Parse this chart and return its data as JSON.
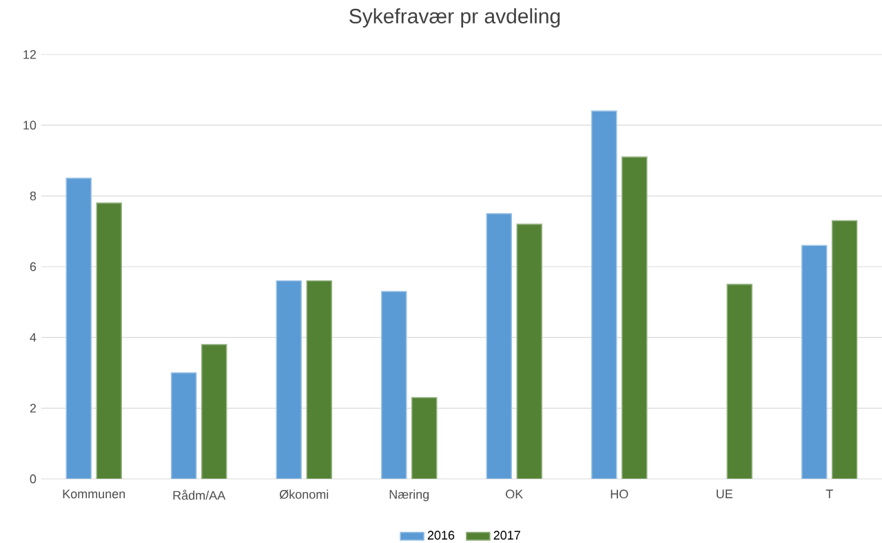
{
  "chart_data": {
    "type": "bar",
    "title": "Sykefravær pr avdeling",
    "categories": [
      "Kommunen",
      "Rådm/AA",
      "Økonomi",
      "Næring",
      "OK",
      "HO",
      "UE",
      "T"
    ],
    "series": [
      {
        "name": "2016",
        "color": "#5b9bd5",
        "values": [
          8.5,
          3.0,
          5.6,
          5.3,
          7.5,
          10.4,
          null,
          6.6
        ]
      },
      {
        "name": "2017",
        "color": "#548235",
        "values": [
          7.8,
          3.8,
          5.6,
          2.3,
          7.2,
          9.1,
          5.5,
          7.3
        ]
      }
    ],
    "ylim": [
      0,
      12
    ],
    "yticks": [
      0,
      2,
      4,
      6,
      8,
      10,
      12
    ],
    "grid": "y",
    "legend": "bottom"
  }
}
